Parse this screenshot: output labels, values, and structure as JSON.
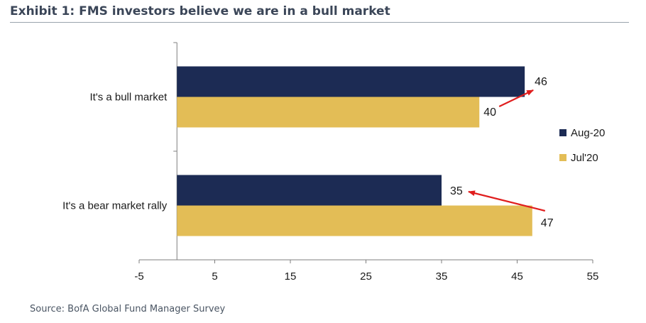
{
  "header": {
    "title": "Exhibit 1: FMS investors believe we are in a bull market"
  },
  "footer": {
    "source": "Source: BofA Global Fund Manager Survey"
  },
  "chart_data": {
    "type": "bar",
    "orientation": "horizontal",
    "categories": [
      "It's a bull market",
      "It's a bear market rally"
    ],
    "series": [
      {
        "name": "Aug-20",
        "color": "#1c2b54",
        "values": [
          46,
          35
        ]
      },
      {
        "name": "Jul'20",
        "color": "#e3bd56",
        "values": [
          40,
          47
        ]
      }
    ],
    "xlim": [
      -5,
      55
    ],
    "xticks": [
      "-5",
      "5",
      "15",
      "25",
      "35",
      "45",
      "55"
    ],
    "legend_position": "right",
    "annotation_color": "#e01e1e",
    "grid": false
  }
}
